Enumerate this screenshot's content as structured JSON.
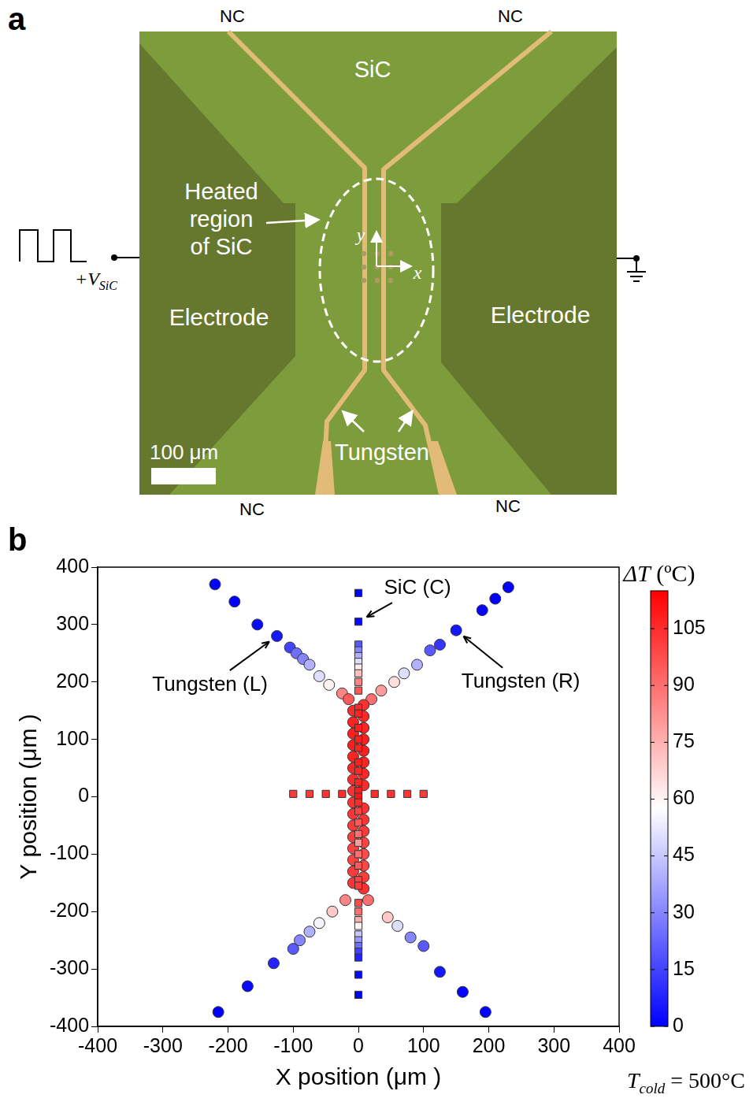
{
  "panel_a": {
    "label": "a",
    "corner_labels": [
      "NC",
      "NC",
      "NC",
      "NC"
    ],
    "region": "SiC",
    "heated_label": "Heated region of SiC",
    "electrodes": [
      "Electrode",
      "Electrode"
    ],
    "wires": "Tungsten",
    "axes": [
      "y",
      "x"
    ],
    "voltage": {
      "text": "+V",
      "subscript": "SiC"
    },
    "scale_bar": "100 μm"
  },
  "chart_data": {
    "type": "scatter",
    "label": "b",
    "x_label": "X position (μm )",
    "y_label": "Y position (μm )",
    "xlim": [
      -400,
      400
    ],
    "xticks": [
      -400,
      -300,
      -200,
      -100,
      0,
      100,
      200,
      300,
      400
    ],
    "ylim": [
      -400,
      400
    ],
    "yticks": [
      -400,
      -300,
      -200,
      -100,
      0,
      100,
      200,
      300,
      400
    ],
    "grid": false,
    "series": [
      {
        "name": "SiC (C)",
        "marker": "square",
        "x": [
          0,
          0,
          0,
          0,
          0,
          0,
          0,
          0,
          0,
          0,
          0,
          0,
          0,
          0,
          0,
          0,
          0,
          0,
          0,
          0,
          0,
          0,
          0,
          0,
          0,
          0,
          0,
          0,
          0,
          0,
          0,
          0,
          0,
          0,
          0,
          0,
          0,
          0,
          0,
          0,
          -100,
          -75,
          -50,
          -25,
          25,
          50,
          75,
          100
        ],
        "y": [
          355,
          305,
          265,
          255,
          245,
          235,
          225,
          215,
          200,
          185,
          155,
          145,
          120,
          100,
          85,
          60,
          45,
          25,
          10,
          0,
          -10,
          -25,
          -45,
          -65,
          -80,
          -100,
          -120,
          -145,
          -155,
          -185,
          -200,
          -215,
          -225,
          -240,
          -250,
          -260,
          -270,
          -280,
          -310,
          -345,
          5,
          5,
          5,
          5,
          5,
          5,
          5,
          5
        ],
        "delta_t": [
          0,
          2,
          20,
          30,
          40,
          50,
          62,
          72,
          85,
          95,
          105,
          107,
          108,
          108,
          107,
          108,
          106,
          107,
          108,
          110,
          105,
          100,
          95,
          90,
          80,
          90,
          95,
          100,
          102,
          98,
          90,
          75,
          60,
          45,
          35,
          25,
          15,
          8,
          2,
          0,
          102,
          102,
          104,
          105,
          105,
          104,
          103,
          102
        ]
      },
      {
        "name": "Tungsten (L)",
        "marker": "circle",
        "x": [
          -220,
          -190,
          -155,
          -125,
          -105,
          -95,
          -85,
          -75,
          -60,
          -45,
          -25,
          -15,
          -8,
          -8,
          -8,
          -8,
          -8,
          -8,
          -8,
          -8,
          -8,
          -8,
          -8,
          -8,
          -8,
          -8,
          -8,
          -8,
          -20,
          -40,
          -60,
          -75,
          -90,
          -100,
          -130,
          -170,
          -215
        ],
        "y": [
          370,
          340,
          300,
          280,
          260,
          250,
          240,
          230,
          210,
          195,
          180,
          170,
          150,
          130,
          110,
          90,
          70,
          50,
          30,
          10,
          -10,
          -30,
          -50,
          -70,
          -90,
          -110,
          -130,
          -150,
          -180,
          -200,
          -220,
          -235,
          -250,
          -265,
          -290,
          -330,
          -375
        ],
        "delta_t": [
          0,
          0,
          2,
          5,
          15,
          25,
          30,
          40,
          50,
          60,
          85,
          95,
          105,
          107,
          108,
          108,
          107,
          106,
          105,
          104,
          104,
          103,
          102,
          101,
          100,
          100,
          102,
          103,
          85,
          70,
          55,
          40,
          30,
          20,
          8,
          2,
          0
        ]
      },
      {
        "name": "Tungsten (R)",
        "marker": "circle",
        "x": [
          20,
          35,
          55,
          70,
          90,
          110,
          125,
          150,
          190,
          210,
          230,
          8,
          8,
          8,
          8,
          8,
          8,
          8,
          8,
          8,
          8,
          8,
          8,
          8,
          8,
          8,
          8,
          15,
          45,
          60,
          80,
          100,
          125,
          160,
          195
        ],
        "y": [
          170,
          185,
          200,
          215,
          230,
          255,
          265,
          290,
          325,
          345,
          365,
          160,
          140,
          120,
          100,
          80,
          60,
          40,
          20,
          -20,
          -40,
          -60,
          -80,
          -100,
          -120,
          -140,
          -160,
          -180,
          -210,
          -225,
          -245,
          -260,
          -305,
          -340,
          -375
        ],
        "delta_t": [
          90,
          80,
          65,
          50,
          40,
          20,
          12,
          5,
          1,
          0,
          0,
          104,
          106,
          107,
          108,
          108,
          107,
          106,
          105,
          104,
          103,
          102,
          100,
          98,
          99,
          101,
          104,
          90,
          70,
          50,
          30,
          20,
          5,
          1,
          0
        ]
      }
    ],
    "color_bar": {
      "title": "ΔT (ºC)",
      "range": [
        0,
        115
      ],
      "ticks": [
        0,
        15,
        30,
        45,
        60,
        75,
        90,
        105
      ],
      "colors": [
        "#0000ff",
        "#ffffff",
        "#ff0000"
      ]
    },
    "note": {
      "text": "T",
      "subscript": "cold",
      "rest": " = 500°C"
    }
  }
}
